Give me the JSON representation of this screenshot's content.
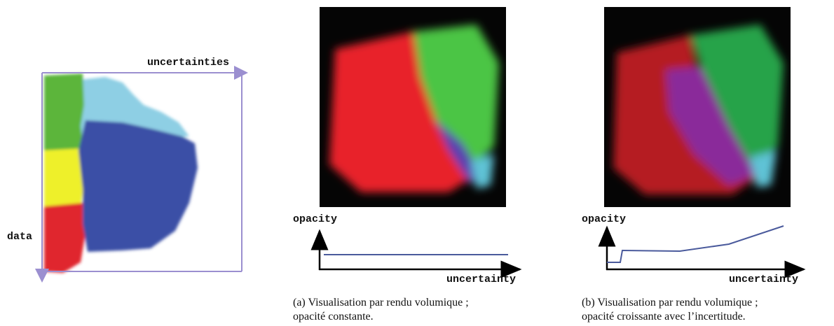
{
  "left_panel": {
    "x_axis_label": "uncertainties",
    "y_axis_label": "data"
  },
  "panel_a": {
    "y_axis_label": "opacity",
    "x_axis_label": "uncertainty",
    "caption": [
      "(a) Visualisation par rendu volumique ;",
      "opacité constante."
    ]
  },
  "panel_b": {
    "y_axis_label": "opacity",
    "x_axis_label": "uncertainty",
    "caption": [
      "(b) Visualisation par rendu volumique ;",
      "opacité croissante avec l’incertitude."
    ]
  }
}
